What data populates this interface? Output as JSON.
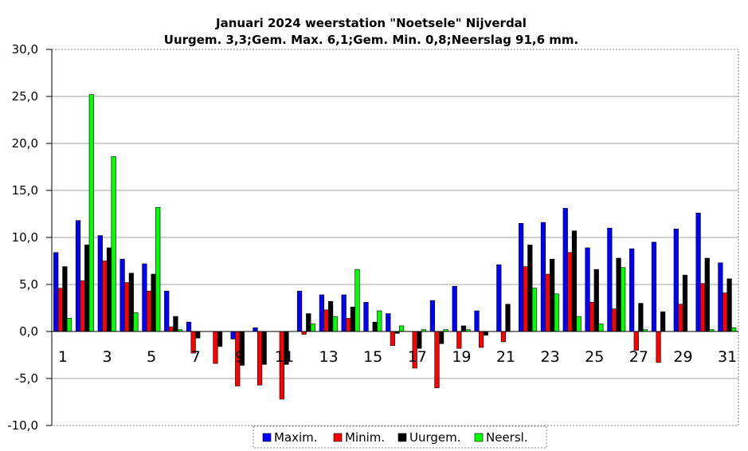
{
  "chart_data": {
    "type": "bar",
    "title": "Januari 2024 weerstation \"Noetsele\" Nijverdal",
    "subtitle": "Uurgem. 3,3;Gem. Max. 6,1;Gem. Min. 0,8;Neerslag 91,6 mm.",
    "ylim": [
      -10,
      30
    ],
    "yticks": [
      "30,0",
      "25,0",
      "20,0",
      "15,0",
      "10,0",
      "5,0",
      "0,0",
      "-5,0",
      "-10,0"
    ],
    "ytick_values": [
      30,
      25,
      20,
      15,
      10,
      5,
      0,
      -5,
      -10
    ],
    "categories": [
      "1",
      "2",
      "3",
      "4",
      "5",
      "6",
      "7",
      "8",
      "9",
      "10",
      "11",
      "12",
      "13",
      "14",
      "15",
      "16",
      "17",
      "18",
      "19",
      "20",
      "21",
      "22",
      "23",
      "24",
      "25",
      "26",
      "27",
      "28",
      "29",
      "30",
      "31"
    ],
    "xtick_labels": [
      "1",
      "3",
      "5",
      "7",
      "9",
      "11",
      "13",
      "15",
      "17",
      "19",
      "21",
      "23",
      "25",
      "27",
      "29",
      "31"
    ],
    "grid": true,
    "legend_position": "bottom",
    "series": [
      {
        "name": "Maxim.",
        "color": "#0000ff",
        "values": [
          8.4,
          11.8,
          10.2,
          7.7,
          7.2,
          4.3,
          1.0,
          0.0,
          -0.8,
          0.4,
          0.0,
          4.3,
          3.9,
          3.9,
          3.1,
          1.9,
          0.0,
          3.3,
          4.8,
          2.2,
          7.1,
          11.5,
          11.6,
          13.1,
          8.9,
          11.0,
          8.8,
          9.5,
          10.9,
          12.6,
          7.3
        ]
      },
      {
        "name": "Minim.",
        "color": "#ff0000",
        "values": [
          4.6,
          5.4,
          7.5,
          5.2,
          4.3,
          0.5,
          -2.3,
          -3.4,
          -5.8,
          -5.7,
          -7.2,
          -0.3,
          2.3,
          1.4,
          0.0,
          -1.5,
          -3.9,
          -6.0,
          -1.8,
          -1.7,
          -1.1,
          6.9,
          6.1,
          8.4,
          3.1,
          2.4,
          -2.0,
          -3.3,
          2.9,
          5.1,
          4.1
        ]
      },
      {
        "name": "Uurgem.",
        "color": "#000000",
        "values": [
          6.9,
          9.2,
          8.9,
          6.2,
          6.1,
          1.6,
          -0.7,
          -1.6,
          -3.6,
          -3.5,
          -3.5,
          1.9,
          3.2,
          2.6,
          1.0,
          -0.2,
          -1.8,
          -1.3,
          0.6,
          -0.4,
          2.9,
          9.2,
          7.7,
          10.7,
          6.6,
          7.8,
          3.0,
          2.1,
          6.0,
          7.8,
          5.6
        ]
      },
      {
        "name": "Neersl.",
        "color": "#00ff00",
        "values": [
          1.4,
          25.2,
          18.6,
          2.0,
          13.2,
          0.2,
          0.0,
          0.0,
          0.0,
          0.0,
          0.0,
          0.8,
          1.6,
          6.6,
          2.2,
          0.6,
          0.2,
          0.2,
          0.2,
          0.0,
          0.0,
          4.6,
          4.0,
          1.6,
          0.8,
          6.8,
          0.2,
          0.0,
          0.0,
          0.2,
          0.4
        ]
      }
    ]
  }
}
